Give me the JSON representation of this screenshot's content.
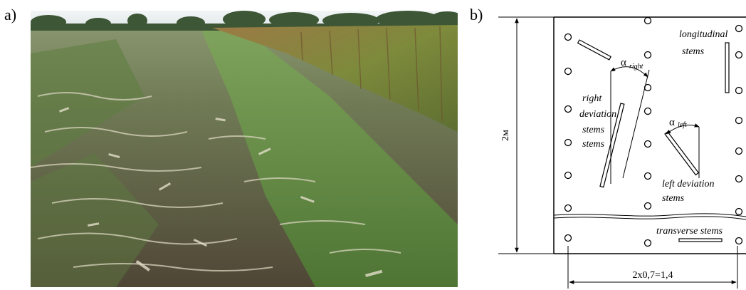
{
  "panel_a": {
    "label": "a)"
  },
  "panel_b": {
    "label": "b)"
  },
  "diagram": {
    "dimension_height": "2м",
    "dimension_width": "2x0,7=1,4",
    "longitudinal_line1": "longitudinal",
    "longitudinal_line2": "stems",
    "alpha_right_symbol": "α",
    "alpha_right_sub": "right",
    "alpha_left_symbol": "α",
    "alpha_left_sub": "left",
    "right_dev_lines": [
      "right",
      "deviation",
      "stems",
      "stems"
    ],
    "left_dev_line1": "left deviation",
    "left_dev_line2": "stems",
    "transverse": "transverse stems"
  },
  "colors": {
    "sky": "#e9eef0",
    "tree_line": "#3f5a3a",
    "corn": "#8a6a3a",
    "green": "#5f8a3c",
    "soil": "#5b4c3c",
    "straw": "#d8d2bd"
  }
}
